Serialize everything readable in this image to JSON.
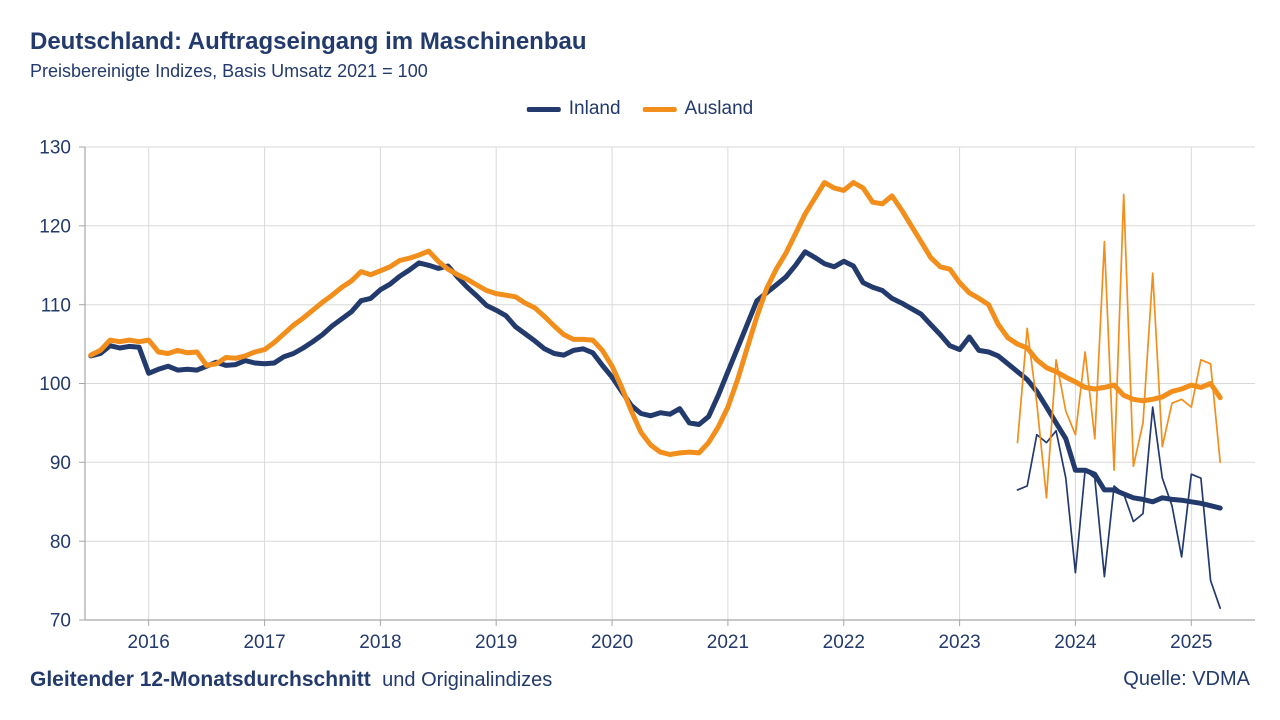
{
  "header": {
    "title": "Deutschland: Auftragseingang im Maschinenbau",
    "subtitle": "Preisbereinigte Indizes, Basis Umsatz 2021 = 100"
  },
  "legend": {
    "items": [
      {
        "label": "Inland",
        "color": "#233a6c"
      },
      {
        "label": "Ausland",
        "color": "#f28e1b"
      }
    ]
  },
  "footer": {
    "left_bold": "Gleitender 12-Monatsdurchschnitt",
    "left_regular": "und Originalindizes",
    "source": "Quelle: VDMA"
  },
  "chart_data": {
    "type": "line",
    "title": "Deutschland: Auftragseingang im Maschinenbau",
    "subtitle": "Preisbereinigte Indizes, Basis Umsatz 2021 = 100",
    "xlabel": "",
    "ylabel": "",
    "x_domain": [
      2015.45,
      2025.55
    ],
    "y_domain": [
      70,
      130
    ],
    "x_ticks": [
      2016,
      2017,
      2018,
      2019,
      2020,
      2021,
      2022,
      2023,
      2024,
      2025
    ],
    "y_ticks": [
      70,
      80,
      90,
      100,
      110,
      120,
      130
    ],
    "grid": true,
    "legend_position": "top-center",
    "style": {
      "grid_color": "#d9d9d9",
      "axis_color": "#a6a6a6",
      "text_color": "#233a6c",
      "tick_font_size": 19
    },
    "series": [
      {
        "name": "Inland (Gleitender 12-Monatsdurchschnitt)",
        "color": "#233a6c",
        "width": 5,
        "x_start": 2015.5,
        "x_step": 0.083333,
        "values": [
          103.5,
          103.8,
          104.8,
          104.5,
          104.7,
          104.6,
          101.3,
          101.8,
          102.2,
          101.7,
          101.8,
          101.7,
          102.2,
          102.7,
          102.3,
          102.4,
          102.9,
          102.6,
          102.5,
          102.6,
          103.4,
          103.8,
          104.5,
          105.3,
          106.2,
          107.3,
          108.2,
          109.1,
          110.5,
          110.8,
          111.9,
          112.6,
          113.6,
          114.4,
          115.3,
          115.0,
          114.6,
          114.9,
          113.5,
          112.2,
          111.1,
          109.9,
          109.3,
          108.6,
          107.2,
          106.3,
          105.4,
          104.4,
          103.8,
          103.6,
          104.2,
          104.4,
          103.9,
          102.3,
          100.8,
          99.0,
          97.2,
          96.2,
          95.9,
          96.3,
          96.1,
          96.8,
          95.0,
          94.8,
          95.8,
          98.5,
          101.5,
          104.5,
          107.5,
          110.5,
          111.5,
          112.5,
          113.5,
          115.0,
          116.7,
          116.0,
          115.2,
          114.8,
          115.5,
          114.9,
          112.8,
          112.2,
          111.8,
          110.8,
          110.2,
          109.5,
          108.8,
          107.5,
          106.2,
          104.8,
          104.3,
          105.9,
          104.2,
          104.0,
          103.5,
          102.5,
          101.5,
          100.5,
          99.0,
          97.0,
          95.0,
          93.0,
          89.0,
          89.0,
          88.5,
          86.5,
          86.5,
          86.0,
          85.5,
          85.3,
          85.0,
          85.5,
          85.3,
          85.2,
          85.0,
          84.8,
          84.5,
          84.2
        ]
      },
      {
        "name": "Ausland (Gleitender 12-Monatsdurchschnitt)",
        "color": "#f28e1b",
        "width": 5,
        "x_start": 2015.5,
        "x_step": 0.083333,
        "values": [
          103.6,
          104.2,
          105.5,
          105.3,
          105.5,
          105.3,
          105.5,
          104.0,
          103.8,
          104.2,
          103.9,
          104.0,
          102.3,
          102.5,
          103.3,
          103.2,
          103.5,
          104.0,
          104.3,
          105.2,
          106.3,
          107.4,
          108.3,
          109.3,
          110.3,
          111.2,
          112.2,
          113.0,
          114.2,
          113.8,
          114.3,
          114.8,
          115.6,
          115.9,
          116.3,
          116.8,
          115.5,
          114.5,
          113.8,
          113.2,
          112.5,
          111.8,
          111.4,
          111.2,
          111.0,
          110.2,
          109.6,
          108.5,
          107.3,
          106.2,
          105.6,
          105.6,
          105.5,
          104.2,
          102.2,
          99.5,
          96.5,
          93.8,
          92.2,
          91.3,
          91.0,
          91.2,
          91.3,
          91.2,
          92.5,
          94.5,
          97.0,
          100.5,
          104.5,
          108.5,
          112.0,
          114.5,
          116.5,
          119.0,
          121.5,
          123.5,
          125.5,
          124.8,
          124.5,
          125.5,
          124.8,
          123.0,
          122.8,
          123.8,
          122.0,
          120.0,
          118.0,
          116.0,
          114.8,
          114.5,
          112.8,
          111.5,
          110.8,
          110.0,
          107.5,
          105.8,
          105.0,
          104.5,
          103.0,
          102.0,
          101.5,
          100.8,
          100.2,
          99.5,
          99.3,
          99.5,
          99.8,
          98.5,
          98.0,
          97.8,
          98.0,
          98.3,
          99.0,
          99.3,
          99.8,
          99.5,
          100.0,
          98.2
        ]
      },
      {
        "name": "Inland (Originalindex)",
        "color": "#233a6c",
        "width": 1.7,
        "x_start": 2023.5,
        "x_step": 0.083333,
        "values": [
          86.5,
          87.0,
          93.5,
          92.5,
          94.0,
          88.0,
          76.0,
          89.0,
          88.0,
          75.5,
          87.0,
          86.0,
          82.5,
          83.5,
          97.0,
          88.0,
          84.5,
          78.0,
          88.5,
          88.0,
          75.0,
          71.5
        ]
      },
      {
        "name": "Ausland (Originalindex)",
        "color": "#f28e1b",
        "width": 1.7,
        "x_start": 2023.5,
        "x_step": 0.083333,
        "values": [
          92.5,
          107.0,
          97.5,
          85.5,
          103.0,
          96.5,
          93.5,
          104.0,
          93.0,
          118.0,
          89.0,
          124.0,
          89.5,
          95.0,
          114.0,
          92.0,
          97.5,
          98.0,
          97.0,
          103.0,
          102.5,
          90.0
        ]
      }
    ]
  }
}
